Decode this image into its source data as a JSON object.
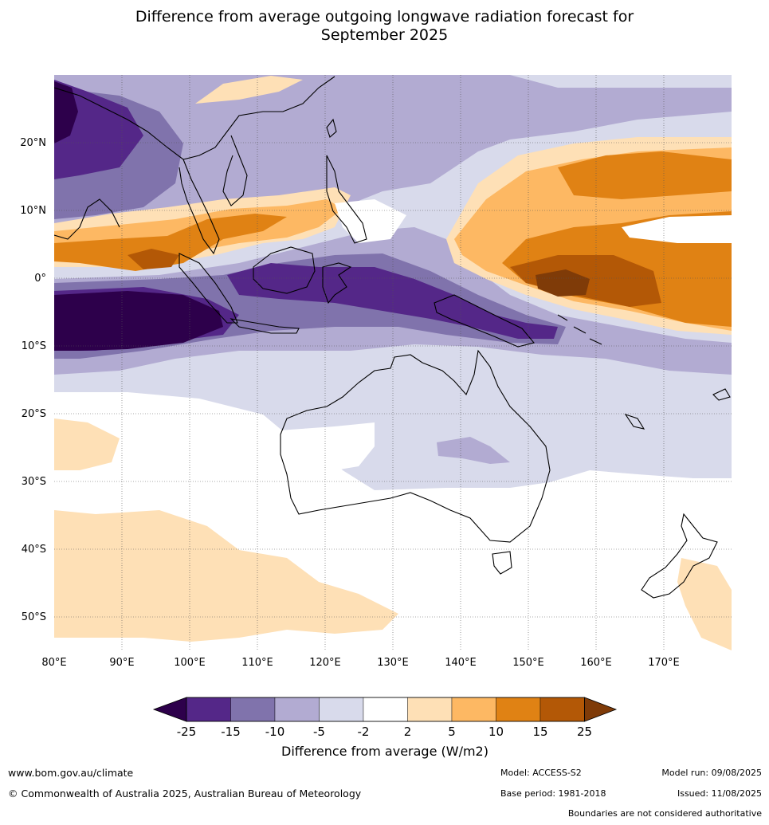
{
  "title_line1": "Difference from average outgoing longwave radiation forecast for",
  "title_line2": "September 2025",
  "lat_labels": [
    "20°N",
    "10°N",
    "0°",
    "10°S",
    "20°S",
    "30°S",
    "40°S",
    "50°S"
  ],
  "lon_labels": [
    "80°E",
    "90°E",
    "100°E",
    "110°E",
    "120°E",
    "130°E",
    "140°E",
    "150°E",
    "160°E",
    "170°E"
  ],
  "colorbar": {
    "ticks": [
      "-25",
      "-15",
      "-10",
      "-5",
      "-2",
      "2",
      "5",
      "10",
      "15",
      "25"
    ],
    "colors": [
      "#2d004b",
      "#542788",
      "#8073ac",
      "#b2abd2",
      "#d8daeb",
      "#ffffff",
      "#fee0b6",
      "#fdb863",
      "#e08214",
      "#b35806",
      "#7f3b08"
    ],
    "title": "Difference from average (W/m2)"
  },
  "footer": {
    "website": "www.bom.gov.au/climate",
    "copyright": "© Commonwealth of Australia 2025, Australian Bureau of Meteorology",
    "model": "Model: ACCESS-S2",
    "base_period": "Base period: 1981-2018",
    "model_run": "Model run: 09/08/2025",
    "issued": "Issued: 11/08/2025",
    "boundaries_note": "Boundaries are not considered authoritative"
  }
}
